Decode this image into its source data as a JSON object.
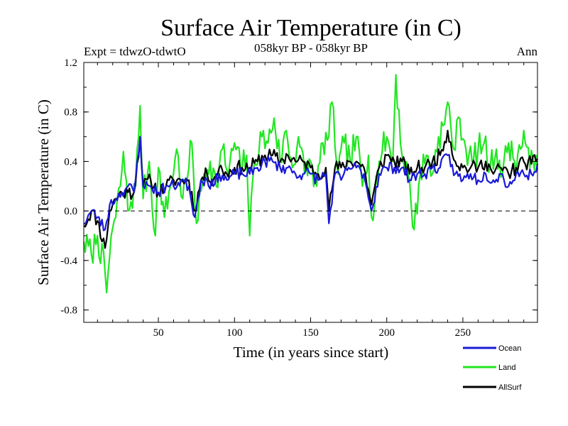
{
  "chart_data": {
    "type": "line",
    "title": "Surface Air Temperature (in C)",
    "subtitle": "058kyr BP - 058kyr BP",
    "experiment_label": "Expt = tdwzO-tdwtO",
    "season_label": "Ann",
    "xlabel": "Time (in years since start)",
    "ylabel": "Surface Air Temperature (in C)",
    "xlim": [
      1,
      299
    ],
    "ylim": [
      -0.9,
      1.2
    ],
    "x_ticks": [
      50,
      100,
      150,
      200,
      250
    ],
    "y_ticks": [
      1.2,
      0.8,
      0.4,
      0.0,
      -0.4,
      -0.8
    ],
    "y_tick_labels": [
      "1.2",
      "0.8",
      "0.4",
      "0.0",
      "-0.4",
      "-0.8"
    ],
    "zero_line": "dashed",
    "legend_position": "bottom-right, below plot",
    "series": [
      {
        "name": "Ocean",
        "color": "#1a1ad6"
      },
      {
        "name": "Land",
        "color": "#22e622"
      },
      {
        "name": "AllSurf",
        "color": "#000000"
      }
    ],
    "land_anchors": [
      [
        1,
        -0.25
      ],
      [
        6,
        -0.35
      ],
      [
        10,
        -0.2
      ],
      [
        15,
        -0.5
      ],
      [
        16,
        -0.66
      ],
      [
        19,
        -0.2
      ],
      [
        22,
        -0.05
      ],
      [
        25,
        0.2
      ],
      [
        27,
        0.48
      ],
      [
        30,
        0.0
      ],
      [
        35,
        0.2
      ],
      [
        38,
        0.85
      ],
      [
        40,
        0.1
      ],
      [
        44,
        0.4
      ],
      [
        48,
        -0.2
      ],
      [
        50,
        0.35
      ],
      [
        54,
        -0.05
      ],
      [
        58,
        0.2
      ],
      [
        62,
        0.5
      ],
      [
        66,
        0.1
      ],
      [
        70,
        0.35
      ],
      [
        72,
        0.55
      ],
      [
        75,
        -0.1
      ],
      [
        80,
        0.3
      ],
      [
        84,
        0.4
      ],
      [
        88,
        0.2
      ],
      [
        92,
        0.5
      ],
      [
        96,
        0.3
      ],
      [
        100,
        0.55
      ],
      [
        104,
        0.35
      ],
      [
        108,
        0.45
      ],
      [
        110,
        -0.2
      ],
      [
        113,
        0.4
      ],
      [
        118,
        0.6
      ],
      [
        122,
        0.55
      ],
      [
        126,
        0.75
      ],
      [
        130,
        0.4
      ],
      [
        134,
        0.65
      ],
      [
        138,
        0.35
      ],
      [
        142,
        0.6
      ],
      [
        146,
        0.3
      ],
      [
        150,
        0.4
      ],
      [
        154,
        0.2
      ],
      [
        158,
        0.55
      ],
      [
        162,
        0.6
      ],
      [
        164,
        0.88
      ],
      [
        168,
        0.3
      ],
      [
        172,
        0.55
      ],
      [
        176,
        0.4
      ],
      [
        180,
        0.6
      ],
      [
        184,
        0.2
      ],
      [
        188,
        0.45
      ],
      [
        190,
        -0.05
      ],
      [
        195,
        0.4
      ],
      [
        200,
        0.6
      ],
      [
        204,
        0.4
      ],
      [
        206,
        1.1
      ],
      [
        210,
        0.45
      ],
      [
        214,
        0.3
      ],
      [
        218,
        -0.15
      ],
      [
        222,
        0.3
      ],
      [
        226,
        0.45
      ],
      [
        230,
        0.3
      ],
      [
        234,
        0.6
      ],
      [
        238,
        0.7
      ],
      [
        240,
        0.88
      ],
      [
        244,
        0.5
      ],
      [
        248,
        0.75
      ],
      [
        252,
        0.5
      ],
      [
        256,
        0.4
      ],
      [
        260,
        0.5
      ],
      [
        264,
        0.55
      ],
      [
        268,
        0.35
      ],
      [
        272,
        0.5
      ],
      [
        276,
        0.3
      ],
      [
        280,
        0.55
      ],
      [
        284,
        0.4
      ],
      [
        288,
        0.5
      ],
      [
        290,
        0.65
      ],
      [
        294,
        0.35
      ],
      [
        298,
        0.45
      ]
    ],
    "ocean_anchors": [
      [
        1,
        -0.1
      ],
      [
        6,
        0.0
      ],
      [
        10,
        -0.05
      ],
      [
        15,
        -0.15
      ],
      [
        18,
        0.05
      ],
      [
        22,
        0.1
      ],
      [
        26,
        0.15
      ],
      [
        30,
        0.2
      ],
      [
        34,
        0.15
      ],
      [
        38,
        0.6
      ],
      [
        40,
        0.2
      ],
      [
        45,
        0.2
      ],
      [
        50,
        0.15
      ],
      [
        55,
        0.2
      ],
      [
        60,
        0.2
      ],
      [
        65,
        0.25
      ],
      [
        70,
        0.2
      ],
      [
        74,
        -0.05
      ],
      [
        78,
        0.25
      ],
      [
        82,
        0.25
      ],
      [
        86,
        0.2
      ],
      [
        90,
        0.3
      ],
      [
        95,
        0.25
      ],
      [
        100,
        0.3
      ],
      [
        105,
        0.3
      ],
      [
        110,
        0.3
      ],
      [
        115,
        0.35
      ],
      [
        120,
        0.4
      ],
      [
        125,
        0.4
      ],
      [
        130,
        0.35
      ],
      [
        135,
        0.35
      ],
      [
        140,
        0.3
      ],
      [
        145,
        0.3
      ],
      [
        150,
        0.3
      ],
      [
        155,
        0.25
      ],
      [
        160,
        0.3
      ],
      [
        162,
        -0.1
      ],
      [
        166,
        0.3
      ],
      [
        170,
        0.25
      ],
      [
        175,
        0.35
      ],
      [
        180,
        0.35
      ],
      [
        185,
        0.3
      ],
      [
        190,
        0.0
      ],
      [
        195,
        0.3
      ],
      [
        200,
        0.35
      ],
      [
        205,
        0.35
      ],
      [
        210,
        0.35
      ],
      [
        215,
        0.25
      ],
      [
        220,
        0.3
      ],
      [
        225,
        0.3
      ],
      [
        230,
        0.35
      ],
      [
        235,
        0.35
      ],
      [
        240,
        0.45
      ],
      [
        245,
        0.3
      ],
      [
        250,
        0.25
      ],
      [
        255,
        0.3
      ],
      [
        260,
        0.25
      ],
      [
        265,
        0.3
      ],
      [
        270,
        0.25
      ],
      [
        275,
        0.3
      ],
      [
        280,
        0.2
      ],
      [
        285,
        0.3
      ],
      [
        290,
        0.3
      ],
      [
        295,
        0.3
      ],
      [
        299,
        0.38
      ]
    ],
    "allsurf_anchors": [
      [
        1,
        -0.12
      ],
      [
        6,
        0.0
      ],
      [
        10,
        -0.08
      ],
      [
        15,
        -0.3
      ],
      [
        18,
        0.0
      ],
      [
        22,
        0.1
      ],
      [
        26,
        0.15
      ],
      [
        30,
        0.15
      ],
      [
        34,
        0.15
      ],
      [
        38,
        0.6
      ],
      [
        40,
        0.2
      ],
      [
        45,
        0.25
      ],
      [
        50,
        0.15
      ],
      [
        55,
        0.2
      ],
      [
        60,
        0.25
      ],
      [
        65,
        0.25
      ],
      [
        70,
        0.25
      ],
      [
        74,
        0.0
      ],
      [
        78,
        0.25
      ],
      [
        82,
        0.3
      ],
      [
        86,
        0.25
      ],
      [
        90,
        0.35
      ],
      [
        95,
        0.3
      ],
      [
        100,
        0.35
      ],
      [
        105,
        0.35
      ],
      [
        110,
        0.35
      ],
      [
        115,
        0.4
      ],
      [
        120,
        0.45
      ],
      [
        125,
        0.45
      ],
      [
        130,
        0.4
      ],
      [
        135,
        0.45
      ],
      [
        140,
        0.4
      ],
      [
        145,
        0.4
      ],
      [
        150,
        0.35
      ],
      [
        155,
        0.3
      ],
      [
        160,
        0.35
      ],
      [
        162,
        0.0
      ],
      [
        166,
        0.35
      ],
      [
        170,
        0.35
      ],
      [
        175,
        0.4
      ],
      [
        180,
        0.4
      ],
      [
        185,
        0.35
      ],
      [
        190,
        0.05
      ],
      [
        195,
        0.35
      ],
      [
        200,
        0.45
      ],
      [
        205,
        0.4
      ],
      [
        210,
        0.4
      ],
      [
        215,
        0.3
      ],
      [
        220,
        0.35
      ],
      [
        225,
        0.35
      ],
      [
        230,
        0.4
      ],
      [
        235,
        0.45
      ],
      [
        240,
        0.65
      ],
      [
        245,
        0.4
      ],
      [
        250,
        0.35
      ],
      [
        255,
        0.35
      ],
      [
        260,
        0.35
      ],
      [
        265,
        0.4
      ],
      [
        270,
        0.3
      ],
      [
        275,
        0.35
      ],
      [
        280,
        0.3
      ],
      [
        285,
        0.35
      ],
      [
        290,
        0.4
      ],
      [
        295,
        0.38
      ],
      [
        299,
        0.42
      ]
    ],
    "noise_amplitude": {
      "Ocean": 0.05,
      "Land": 0.12,
      "AllSurf": 0.06
    }
  }
}
